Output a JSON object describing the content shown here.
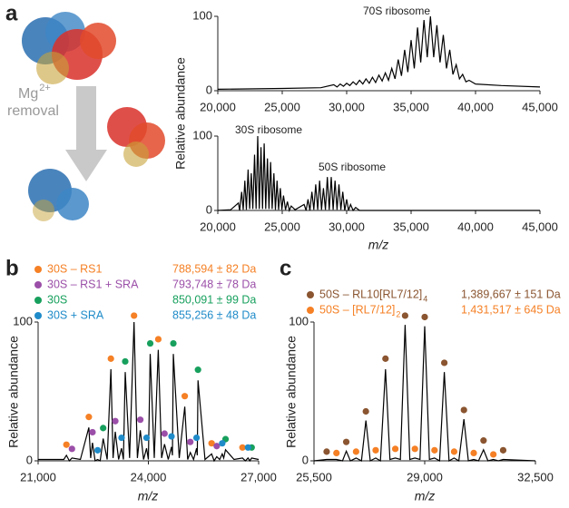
{
  "figure": {
    "panel_labels": [
      "a",
      "b",
      "c"
    ],
    "illustration": {
      "text": "Mg",
      "superscript": "2+",
      "caption": "removal"
    }
  },
  "chart_data": [
    {
      "type": "line",
      "annotations": [
        "70S ribosome"
      ],
      "color": "#000000",
      "x": [
        20000,
        25000,
        28000,
        29000,
        29250,
        29500,
        29750,
        30000,
        30250,
        30500,
        30750,
        31000,
        31250,
        31500,
        31750,
        32000,
        32250,
        32500,
        32750,
        33000,
        33250,
        33500,
        33750,
        34000,
        34250,
        34500,
        34750,
        35000,
        35250,
        35500,
        35750,
        36000,
        36250,
        36500,
        36750,
        37000,
        37250,
        37500,
        37750,
        38000,
        38250,
        38500,
        38750,
        39000,
        39250,
        39500,
        40000,
        42000,
        45000
      ],
      "values": [
        2,
        3,
        4,
        8,
        5,
        9,
        6,
        10,
        7,
        12,
        8,
        14,
        9,
        16,
        10,
        18,
        11,
        21,
        13,
        24,
        14,
        30,
        16,
        42,
        20,
        55,
        25,
        68,
        30,
        85,
        38,
        95,
        45,
        100,
        45,
        88,
        38,
        75,
        30,
        55,
        22,
        35,
        16,
        22,
        12,
        14,
        9,
        7,
        5
      ],
      "xlim": [
        20000,
        45000
      ],
      "ylim": [
        0,
        100
      ],
      "xticks": [
        {
          "value": 20000,
          "label": "20,000"
        },
        {
          "value": 25000,
          "label": "25,000"
        },
        {
          "value": 30000,
          "label": "30,000"
        },
        {
          "value": 35000,
          "label": "35,000"
        },
        {
          "value": 40000,
          "label": "40,000"
        },
        {
          "value": 45000,
          "label": "45,000"
        }
      ],
      "yticks": [
        0,
        100
      ]
    },
    {
      "type": "line",
      "annotations": [
        "30S ribosome",
        "50S ribosome"
      ],
      "color": "#000000",
      "xlabel": "m/z",
      "ylabel": "Relative abundance",
      "x": [
        20000,
        21000,
        21600,
        21700,
        21850,
        21970,
        22100,
        22220,
        22350,
        22470,
        22600,
        22720,
        22850,
        22970,
        23100,
        23220,
        23350,
        23470,
        23600,
        23720,
        23850,
        23970,
        24100,
        24220,
        24350,
        24470,
        24600,
        24720,
        24850,
        24970,
        25100,
        25250,
        25400,
        25550,
        25700,
        26000,
        26700,
        26850,
        27000,
        27150,
        27300,
        27450,
        27600,
        27750,
        27900,
        28050,
        28200,
        28350,
        28500,
        28650,
        28800,
        28950,
        29100,
        29250,
        29400,
        29550,
        29700,
        29850,
        30000,
        30150,
        30300,
        30500,
        30700,
        31000,
        45000
      ],
      "values": [
        0,
        1,
        10,
        0,
        25,
        1,
        40,
        1,
        55,
        2,
        50,
        2,
        75,
        2,
        100,
        2,
        85,
        2,
        90,
        2,
        70,
        2,
        65,
        2,
        50,
        1,
        40,
        1,
        30,
        1,
        20,
        1,
        12,
        0,
        6,
        1,
        8,
        0,
        15,
        0,
        25,
        1,
        35,
        1,
        40,
        1,
        30,
        1,
        45,
        1,
        45,
        1,
        40,
        1,
        35,
        1,
        25,
        0,
        15,
        0,
        8,
        0,
        4,
        0,
        0
      ],
      "xlim": [
        20000,
        45000
      ],
      "ylim": [
        0,
        100
      ],
      "xticks": [
        {
          "value": 20000,
          "label": "20,000"
        },
        {
          "value": 25000,
          "label": "25,000"
        },
        {
          "value": 30000,
          "label": "30,000"
        },
        {
          "value": 35000,
          "label": "35,000"
        },
        {
          "value": 40000,
          "label": "40,000"
        },
        {
          "value": 45000,
          "label": "45,000"
        }
      ],
      "yticks": [
        0,
        100
      ]
    },
    {
      "type": "line",
      "color": "#000000",
      "xlabel": "m/z",
      "ylabel": "Relative abundance",
      "x": [
        21000,
        21700,
        21770,
        21850,
        21920,
        22150,
        22380,
        22430,
        22480,
        22550,
        22620,
        22690,
        22770,
        22880,
        22980,
        23040,
        23100,
        23190,
        23270,
        23320,
        23370,
        23490,
        23610,
        23700,
        23780,
        23870,
        23950,
        24000,
        24050,
        24160,
        24270,
        24360,
        24440,
        24540,
        24630,
        24655,
        24680,
        24840,
        24990,
        25070,
        25140,
        25230,
        25310,
        25330,
        25350,
        25540,
        25720,
        25790,
        25860,
        25940,
        26010,
        26050,
        26100,
        26330,
        26560,
        26640,
        26710,
        26760,
        26810,
        27000
      ],
      "values": [
        1,
        1,
        4,
        0,
        2,
        1,
        24,
        2,
        13,
        0,
        1,
        0,
        16,
        1,
        66,
        2,
        21,
        1,
        9,
        1,
        64,
        2,
        100,
        2,
        22,
        1,
        9,
        1,
        77,
        2,
        80,
        2,
        12,
        1,
        10,
        4,
        77,
        2,
        39,
        1,
        6,
        1,
        9,
        4,
        58,
        1,
        5,
        0,
        3,
        1,
        5,
        2,
        8,
        1,
        2,
        0,
        2,
        0,
        2,
        1
      ],
      "series": [
        {
          "name": "30S – RS1",
          "mass": "788,594 ± 82 Da",
          "color": "#f58025",
          "x": [
            21770,
            22380,
            22980,
            23610,
            24270,
            24990,
            25720,
            26560
          ],
          "values": [
            9,
            29,
            71,
            102,
            85,
            44,
            10,
            7
          ]
        },
        {
          "name": "30S – RS1 + SRA",
          "mass": "793,748 ± 78 Da",
          "color": "#9b4fa8",
          "x": [
            21920,
            22480,
            23100,
            23780,
            24440,
            25140,
            25860
          ],
          "values": [
            6,
            18,
            26,
            27,
            17,
            11,
            8
          ]
        },
        {
          "name": "30S",
          "mass": "850,091 ± 99 Da",
          "color": "#17a05d",
          "x": [
            22770,
            23370,
            24050,
            24680,
            25350,
            26100,
            26810
          ],
          "values": [
            21,
            69,
            82,
            82,
            63,
            13,
            7
          ]
        },
        {
          "name": "30S + SRA",
          "mass": "855,256 ± 48 Da",
          "color": "#1f8bc9",
          "x": [
            22620,
            23270,
            23950,
            24630,
            25310,
            26010,
            26710
          ],
          "values": [
            5,
            14,
            14,
            15,
            14,
            10,
            7
          ]
        }
      ],
      "xlim": [
        21000,
        27000
      ],
      "ylim": [
        0,
        100
      ],
      "xticks": [
        {
          "value": 21000,
          "label": "21,000"
        },
        {
          "value": 24000,
          "label": "24,000"
        },
        {
          "value": 27000,
          "label": "27,000"
        }
      ],
      "yticks": [
        0,
        100
      ]
    },
    {
      "type": "line",
      "color": "#000000",
      "xlabel": "m/z",
      "ylabel": "Relative abundance",
      "x": [
        25500,
        25900,
        26210,
        26400,
        26520,
        26650,
        26830,
        27000,
        27140,
        27280,
        27450,
        27600,
        27760,
        27900,
        28070,
        28230,
        28380,
        28530,
        28690,
        28850,
        29000,
        29150,
        29310,
        29470,
        29620,
        29770,
        29930,
        30080,
        30240,
        30380,
        30550,
        30700,
        30860,
        31000,
        31170,
        31330,
        31480,
        32500
      ],
      "values": [
        0,
        1,
        1,
        0,
        7,
        0,
        2,
        0,
        29,
        0,
        2,
        0,
        66,
        1,
        2,
        1,
        98,
        1,
        2,
        1,
        97,
        1,
        2,
        0,
        64,
        0,
        2,
        0,
        30,
        0,
        1,
        0,
        8,
        0,
        1,
        0,
        1,
        0
      ],
      "series": [
        {
          "name": "50S – RL10[RL7/12]",
          "subscript": "4",
          "mass": "1,389,667 ± 151 Da",
          "color": "#8a5530",
          "x": [
            25900,
            26520,
            27140,
            27760,
            28380,
            29000,
            29620,
            30240,
            30860,
            31480
          ],
          "values": [
            4,
            11,
            33,
            71,
            102,
            101,
            68,
            34,
            12,
            5
          ]
        },
        {
          "name": "50S – [RL7/12]",
          "subscript": "2",
          "mass": "1,431,517 ± 645 Da",
          "color": "#f58025",
          "x": [
            26210,
            26830,
            27450,
            28070,
            28690,
            29310,
            29930,
            30550,
            31170
          ],
          "values": [
            3,
            4,
            5,
            6,
            6,
            5,
            4,
            3,
            2
          ]
        }
      ],
      "xlim": [
        25500,
        32500
      ],
      "ylim": [
        0,
        100
      ],
      "xticks": [
        {
          "value": 25500,
          "label": "25,500"
        },
        {
          "value": 29000,
          "label": "29,000"
        },
        {
          "value": 32500,
          "label": "32,500"
        }
      ],
      "yticks": [
        0,
        100
      ]
    }
  ]
}
